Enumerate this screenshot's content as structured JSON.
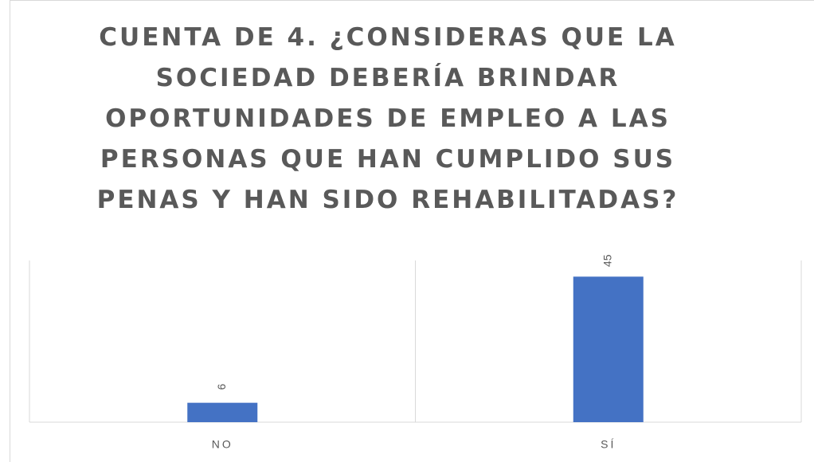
{
  "chart_data": {
    "type": "bar",
    "title": "CUENTA DE 4. ¿CONSIDERAS QUE LA SOCIEDAD DEBERÍA BRINDAR OPORTUNIDADES DE EMPLEO A LAS PERSONAS QUE HAN CUMPLIDO SUS PENAS Y HAN SIDO REHABILITADAS?",
    "categories": [
      "NO",
      "SÍ"
    ],
    "values": [
      6,
      45
    ],
    "color": "#4472c4",
    "ylim": [
      0,
      50
    ],
    "grid": true
  }
}
